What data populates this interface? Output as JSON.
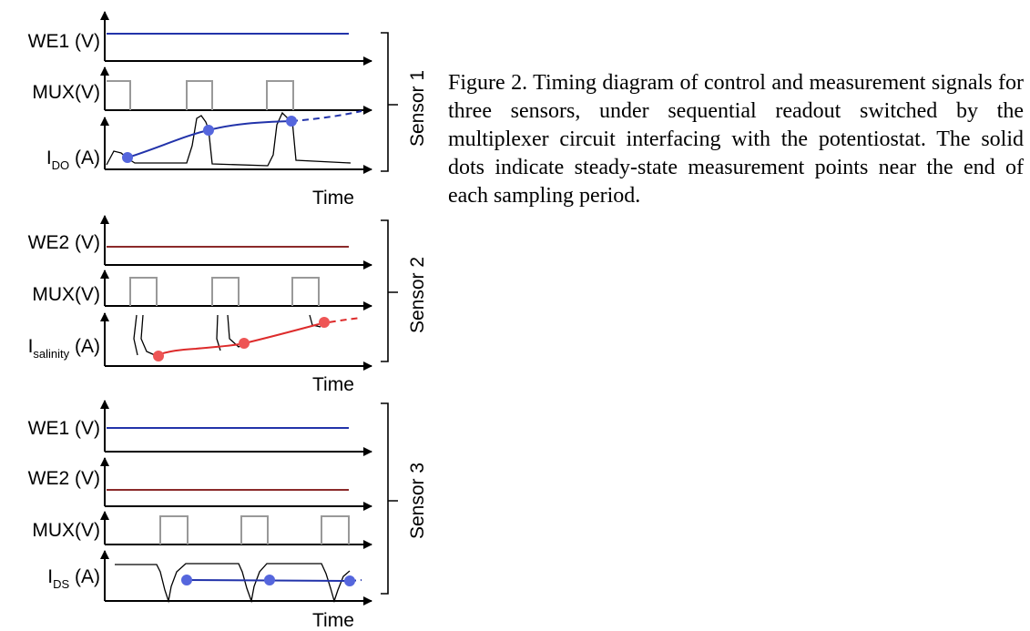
{
  "figure": {
    "caption": "Figure 2. Timing diagram of control and measurement signals for three sensors, under sequential readout switched by the multiplexer circuit interfacing with the potentiostat. The solid dots indicate steady-state measurement points near the end of each sampling period.",
    "colors": {
      "blue": "#2233aa",
      "dark_red": "#8b2a2a",
      "red": "#dd2b2b",
      "gray": "#999999",
      "blue_dot": "#5566dd",
      "red_dot": "#ee5555"
    },
    "sensor1": {
      "title": "Sensor 1",
      "we1_label": "WE1 (V)",
      "mux_label": "MUX(V)",
      "current_main": "I",
      "current_sub": "DO",
      "current_unit": " (A)",
      "time_label": "Time"
    },
    "sensor2": {
      "title": "Sensor 2",
      "we2_label": "WE2 (V)",
      "mux_label": "MUX(V)",
      "current_main": "I",
      "current_sub": "salinity",
      "current_unit": " (A)",
      "time_label": "Time"
    },
    "sensor3": {
      "title": "Sensor 3",
      "we1_label": "WE1 (V)",
      "we2_label": "WE2 (V)",
      "mux_label": "MUX(V)",
      "current_main": "I",
      "current_sub": "DS",
      "current_unit": " (A)",
      "time_label": "Time"
    }
  }
}
